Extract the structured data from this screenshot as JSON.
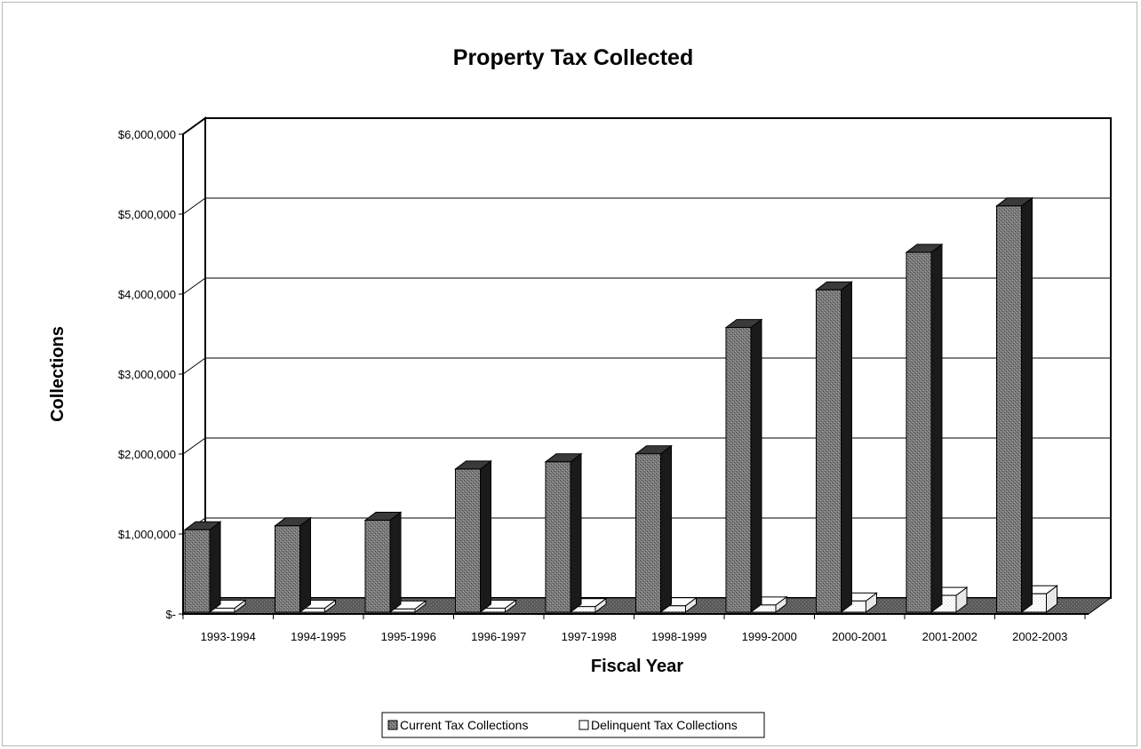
{
  "chart_data": {
    "type": "bar",
    "title": "Property Tax Collected",
    "xlabel": "Fiscal Year",
    "ylabel": "Collections",
    "categories": [
      "1993-1994",
      "1994-1995",
      "1995-1996",
      "1996-1997",
      "1997-1998",
      "1998-1999",
      "1999-2000",
      "2000-2001",
      "2001-2002",
      "2002-2003"
    ],
    "series": [
      {
        "name": "Current Tax Collections",
        "values": [
          1030000,
          1080000,
          1150000,
          1790000,
          1880000,
          1980000,
          3560000,
          4030000,
          4500000,
          5080000
        ],
        "color": "#6e6e6e"
      },
      {
        "name": "Delinquent Tax Collections",
        "values": [
          50000,
          50000,
          40000,
          50000,
          70000,
          80000,
          90000,
          140000,
          210000,
          230000
        ]
      }
    ],
    "ylim": [
      0,
      6000000
    ],
    "yticks": [
      "$-",
      "$1,000,000",
      "$2,000,000",
      "$3,000,000",
      "$4,000,000",
      "$5,000,000",
      "$6,000,000"
    ],
    "grid": true,
    "legend_position": "bottom",
    "style": "3d-column"
  }
}
